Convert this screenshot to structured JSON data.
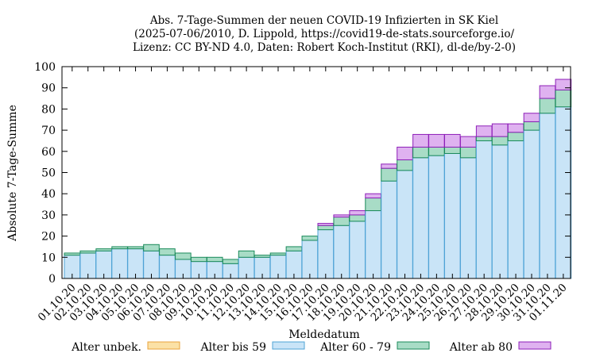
{
  "chart_data": {
    "type": "bar",
    "stacked": true,
    "title_lines": [
      "Abs. 7-Tage-Summen der neuen COVID-19 Infizierten in SK Kiel",
      "(2025-07-06/2010, D. Lippold, https://covid19-de-stats.sourceforge.io/",
      "Lizenz: CC BY-ND 4.0, Daten: Robert Koch-Institut (RKI), dl-de/by-2-0)"
    ],
    "xlabel": "Meldedatum",
    "ylabel": "Absolute 7-Tage-Summe",
    "ylim": [
      0,
      100
    ],
    "yticks": [
      0,
      10,
      20,
      30,
      40,
      50,
      60,
      70,
      80,
      90,
      100
    ],
    "grid": false,
    "legend_position": "bottom",
    "categories": [
      "01.10.20",
      "02.10.20",
      "03.10.20",
      "04.10.20",
      "05.10.20",
      "06.10.20",
      "07.10.20",
      "08.10.20",
      "09.10.20",
      "10.10.20",
      "11.10.20",
      "12.10.20",
      "13.10.20",
      "14.10.20",
      "15.10.20",
      "16.10.20",
      "17.10.20",
      "18.10.20",
      "19.10.20",
      "20.10.20",
      "21.10.20",
      "22.10.20",
      "23.10.20",
      "24.10.20",
      "25.10.20",
      "26.10.20",
      "27.10.20",
      "28.10.20",
      "29.10.20",
      "30.10.20",
      "31.10.20",
      "01.11.20"
    ],
    "series": [
      {
        "name": "Alter unbek.",
        "fill": "#fbe1a6",
        "stroke": "#e8a33c",
        "values": [
          0,
          0,
          0,
          0,
          0,
          0,
          0,
          0,
          0,
          0,
          0,
          0,
          0,
          0,
          0,
          0,
          0,
          0,
          0,
          0,
          0,
          0,
          0,
          0,
          0,
          0,
          0,
          0,
          0,
          0,
          0,
          0
        ]
      },
      {
        "name": "Alter bis 59",
        "fill": "#c9e4f7",
        "stroke": "#4fa3d6",
        "values": [
          11,
          12,
          13,
          14,
          14,
          13,
          11,
          9,
          8,
          8,
          7,
          10,
          10,
          11,
          13,
          18,
          23,
          25,
          27,
          32,
          46,
          51,
          57,
          58,
          59,
          57,
          65,
          63,
          65,
          70,
          78,
          81
        ]
      },
      {
        "name": "Alter 60 - 79",
        "fill": "#a8dcc6",
        "stroke": "#1a8a5a",
        "values": [
          1,
          1,
          1,
          1,
          1,
          3,
          3,
          3,
          2,
          2,
          2,
          3,
          1,
          1,
          2,
          2,
          2,
          4,
          3,
          6,
          6,
          5,
          5,
          4,
          3,
          5,
          2,
          4,
          4,
          4,
          7,
          8
        ]
      },
      {
        "name": "Alter ab 80",
        "fill": "#dfb2f0",
        "stroke": "#8e1fb8",
        "values": [
          0,
          0,
          0,
          0,
          0,
          0,
          0,
          0,
          0,
          0,
          0,
          0,
          0,
          0,
          0,
          0,
          1,
          1,
          2,
          2,
          2,
          6,
          6,
          6,
          6,
          5,
          5,
          6,
          4,
          4,
          6,
          5
        ]
      }
    ]
  }
}
